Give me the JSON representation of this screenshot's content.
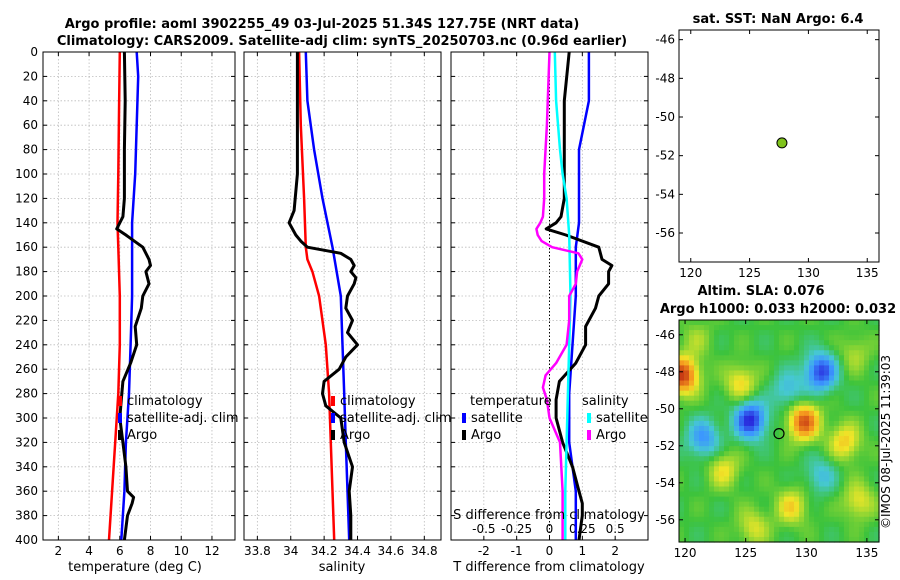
{
  "figure_title_line1": "Argo profile: aoml 3902255_49 03-Jul-2025 51.34S 127.75E (NRT data)",
  "figure_title_line2": "Climatology: CARS2009. Satellite-adj clim: synTS_20250703.nc (0.96d earlier)",
  "depth_ticks": [
    "0",
    "20",
    "40",
    "60",
    "80",
    "100",
    "120",
    "140",
    "160",
    "180",
    "200",
    "220",
    "240",
    "260",
    "280",
    "300",
    "320",
    "340",
    "360",
    "380",
    "400"
  ],
  "colors": {
    "argo": "#000000",
    "climatology": "#ff0000",
    "satellite": "#0000ff",
    "salinity_satellite": "#00ffff",
    "salinity_diff": "#ff00ff",
    "marker": "#7fc31c"
  },
  "chart_data": [
    {
      "id": "temperature",
      "type": "line",
      "xlabel": "temperature (deg C)",
      "ylabel": "depth",
      "xlim": [
        1,
        13.5
      ],
      "ylim": [
        400,
        0
      ],
      "xticks": [
        2,
        4,
        6,
        8,
        10,
        12
      ],
      "legend": [
        "climatology",
        "satellite-adj. clim",
        "Argo"
      ],
      "series": [
        {
          "name": "climatology",
          "color": "#ff0000",
          "depth": [
            0,
            50,
            100,
            140,
            160,
            200,
            240,
            280,
            320,
            360,
            400
          ],
          "values": [
            6.0,
            5.95,
            5.9,
            5.85,
            5.9,
            6.0,
            6.0,
            5.9,
            5.7,
            5.5,
            5.3
          ]
        },
        {
          "name": "satellite-adj. clim",
          "color": "#0000ff",
          "depth": [
            0,
            20,
            60,
            100,
            140,
            160,
            200,
            240,
            280,
            320,
            360,
            400
          ],
          "values": [
            7.1,
            7.2,
            7.1,
            7.0,
            6.8,
            6.8,
            6.8,
            6.7,
            6.6,
            6.4,
            6.3,
            6.1
          ]
        },
        {
          "name": "Argo",
          "color": "#000000",
          "depth": [
            0,
            40,
            80,
            120,
            135,
            140,
            145,
            150,
            160,
            170,
            175,
            180,
            190,
            200,
            210,
            225,
            240,
            255,
            270,
            285,
            300,
            320,
            340,
            360,
            365,
            370,
            380,
            400
          ],
          "values": [
            6.3,
            6.35,
            6.3,
            6.3,
            6.2,
            6.0,
            5.8,
            6.4,
            7.5,
            7.9,
            8.0,
            7.7,
            7.9,
            7.5,
            7.4,
            7.0,
            7.1,
            6.7,
            6.2,
            6.1,
            6.0,
            6.2,
            6.4,
            6.5,
            6.9,
            6.8,
            6.5,
            6.3
          ]
        }
      ]
    },
    {
      "id": "salinity",
      "type": "line",
      "xlabel": "salinity",
      "ylabel": "depth",
      "xlim": [
        33.72,
        34.9
      ],
      "ylim": [
        400,
        0
      ],
      "xticks": [
        33.8,
        34,
        34.2,
        34.4,
        34.6,
        34.8
      ],
      "xtick_labels": [
        "33.8",
        "34",
        "34.2",
        "34.4",
        "34.6",
        "34.8"
      ],
      "legend": [
        "climatology",
        "satellite-adj. clim",
        "Argo"
      ],
      "series": [
        {
          "name": "climatology",
          "color": "#ff0000",
          "depth": [
            0,
            60,
            120,
            160,
            170,
            180,
            200,
            240,
            280,
            320,
            360,
            400
          ],
          "values": [
            34.05,
            34.06,
            34.08,
            34.09,
            34.1,
            34.13,
            34.17,
            34.21,
            34.23,
            34.24,
            34.25,
            34.26
          ]
        },
        {
          "name": "satellite-adj. clim",
          "color": "#0000ff",
          "depth": [
            0,
            40,
            80,
            120,
            160,
            200,
            240,
            280,
            320,
            360,
            400
          ],
          "values": [
            34.09,
            34.1,
            34.14,
            34.19,
            34.25,
            34.3,
            34.31,
            34.32,
            34.33,
            34.34,
            34.35
          ]
        },
        {
          "name": "Argo",
          "color": "#000000",
          "depth": [
            0,
            100,
            130,
            140,
            150,
            155,
            160,
            165,
            170,
            175,
            180,
            185,
            190,
            200,
            210,
            220,
            230,
            240,
            250,
            260,
            270,
            280,
            290,
            300,
            320,
            340,
            360,
            380,
            400
          ],
          "values": [
            34.04,
            34.04,
            34.02,
            33.99,
            34.03,
            34.06,
            34.1,
            34.3,
            34.36,
            34.38,
            34.36,
            34.39,
            34.38,
            34.34,
            34.33,
            34.37,
            34.34,
            34.4,
            34.33,
            34.29,
            34.2,
            34.19,
            34.21,
            34.3,
            34.32,
            34.37,
            34.35,
            34.36,
            34.36
          ]
        }
      ]
    },
    {
      "id": "difference",
      "type": "line",
      "xlabel": "T difference from climatology",
      "top_axis_label": "S difference from climatology",
      "ylabel": "depth",
      "xlim": [
        -3,
        3
      ],
      "ylim": [
        400,
        0
      ],
      "xticks": [
        -2,
        -1,
        0,
        1,
        2
      ],
      "top_axis_ticks": [
        -0.5,
        -0.25,
        0,
        0.25,
        0.5
      ],
      "top_axis_tick_labels": [
        "-0.5",
        "-0.25",
        "0",
        "0.25",
        "0.5"
      ],
      "legend_temperature_title": "temperature",
      "legend_salinity_title": "salinity",
      "legend_items": [
        "satellite",
        "Argo",
        "satellite",
        "Argo"
      ],
      "series": [
        {
          "name": "T satellite",
          "color": "#0000ff",
          "depth": [
            0,
            40,
            80,
            120,
            140,
            160,
            200,
            240,
            280,
            320,
            360,
            400
          ],
          "values": [
            1.2,
            1.2,
            0.9,
            0.9,
            0.9,
            0.8,
            0.8,
            0.7,
            0.6,
            0.6,
            0.8,
            0.8
          ]
        },
        {
          "name": "T Argo",
          "color": "#000000",
          "depth": [
            0,
            40,
            80,
            120,
            135,
            140,
            145,
            150,
            160,
            170,
            175,
            180,
            190,
            200,
            210,
            225,
            240,
            255,
            270,
            285,
            300,
            320,
            340,
            360,
            370,
            380,
            400
          ],
          "values": [
            0.6,
            0.45,
            0.45,
            0.45,
            0.35,
            0.2,
            -0.1,
            0.5,
            1.5,
            1.6,
            1.9,
            1.8,
            1.8,
            1.5,
            1.4,
            1.1,
            1.1,
            0.8,
            0.3,
            0.2,
            0.2,
            0.4,
            0.7,
            0.9,
            1.0,
            1.0,
            0.9
          ]
        },
        {
          "name": "S satellite",
          "color": "#00ffff",
          "depth": [
            0,
            40,
            80,
            100,
            120,
            150,
            200,
            240,
            280,
            320,
            360,
            400
          ],
          "values": [
            0.04,
            0.05,
            0.08,
            0.1,
            0.13,
            0.15,
            0.16,
            0.15,
            0.14,
            0.13,
            0.12,
            0.12
          ]
        },
        {
          "name": "S Argo",
          "color": "#ff00ff",
          "depth": [
            0,
            60,
            100,
            120,
            135,
            140,
            145,
            150,
            155,
            160,
            165,
            170,
            180,
            190,
            200,
            220,
            240,
            255,
            265,
            275,
            285,
            300,
            320,
            360,
            400
          ],
          "values": [
            0,
            -0.02,
            -0.04,
            -0.04,
            -0.05,
            -0.07,
            -0.1,
            -0.09,
            -0.06,
            0.02,
            0.22,
            0.25,
            0.21,
            0.2,
            0.15,
            0.15,
            0.13,
            0.05,
            -0.03,
            -0.05,
            -0.02,
            0.0,
            0.08,
            0.1,
            0.1
          ]
        }
      ]
    },
    {
      "id": "sst_map",
      "type": "scatter",
      "title": "sat. SST: NaN Argo: 6.4",
      "xlim": [
        119,
        136
      ],
      "ylim": [
        -57.5,
        -45.5
      ],
      "xticks": [
        120,
        125,
        130,
        135
      ],
      "yticks": [
        -46,
        -48,
        -50,
        -52,
        -54,
        -56
      ],
      "points": [
        {
          "lon": 127.75,
          "lat": -51.34,
          "color": "#7fc31c"
        }
      ]
    },
    {
      "id": "sla_map",
      "type": "heatmap",
      "title_line1": "Altim. SLA: 0.076",
      "title_line2": "Argo h1000: 0.033 h2000: 0.032",
      "xlim": [
        119.5,
        136
      ],
      "ylim": [
        -57.2,
        -45.2
      ],
      "xticks": [
        120,
        125,
        130,
        135
      ],
      "yticks": [
        -46,
        -48,
        -50,
        -52,
        -54,
        -56
      ],
      "points": [
        {
          "lon": 127.75,
          "lat": -51.34
        }
      ],
      "features": [
        {
          "lon": 119.8,
          "lat": -48.2,
          "value": 1.0
        },
        {
          "lon": 131.2,
          "lat": -48.0,
          "value": -0.9
        },
        {
          "lon": 128.5,
          "lat": -49.0,
          "value": -0.4
        },
        {
          "lon": 129.8,
          "lat": -50.7,
          "value": 0.9
        },
        {
          "lon": 125.4,
          "lat": -50.6,
          "value": -1.0
        },
        {
          "lon": 121.5,
          "lat": -51.6,
          "value": -0.6
        },
        {
          "lon": 133.2,
          "lat": -51.8,
          "value": 0.5
        },
        {
          "lon": 124.6,
          "lat": -48.6,
          "value": 0.45
        },
        {
          "lon": 123.2,
          "lat": -53.3,
          "value": 0.4
        },
        {
          "lon": 128.8,
          "lat": -55.3,
          "value": 0.45
        },
        {
          "lon": 134.3,
          "lat": -55.0,
          "value": 0.4
        },
        {
          "lon": 131.2,
          "lat": -53.6,
          "value": -0.35
        },
        {
          "lon": 125.6,
          "lat": -56.4,
          "value": 0.35
        },
        {
          "lon": 121.0,
          "lat": -46.2,
          "value": 0.2
        },
        {
          "lon": 134.0,
          "lat": -47.0,
          "value": 0.25
        }
      ]
    }
  ],
  "copyright": "©IMOS 08-Jul-2025 11:39:03"
}
